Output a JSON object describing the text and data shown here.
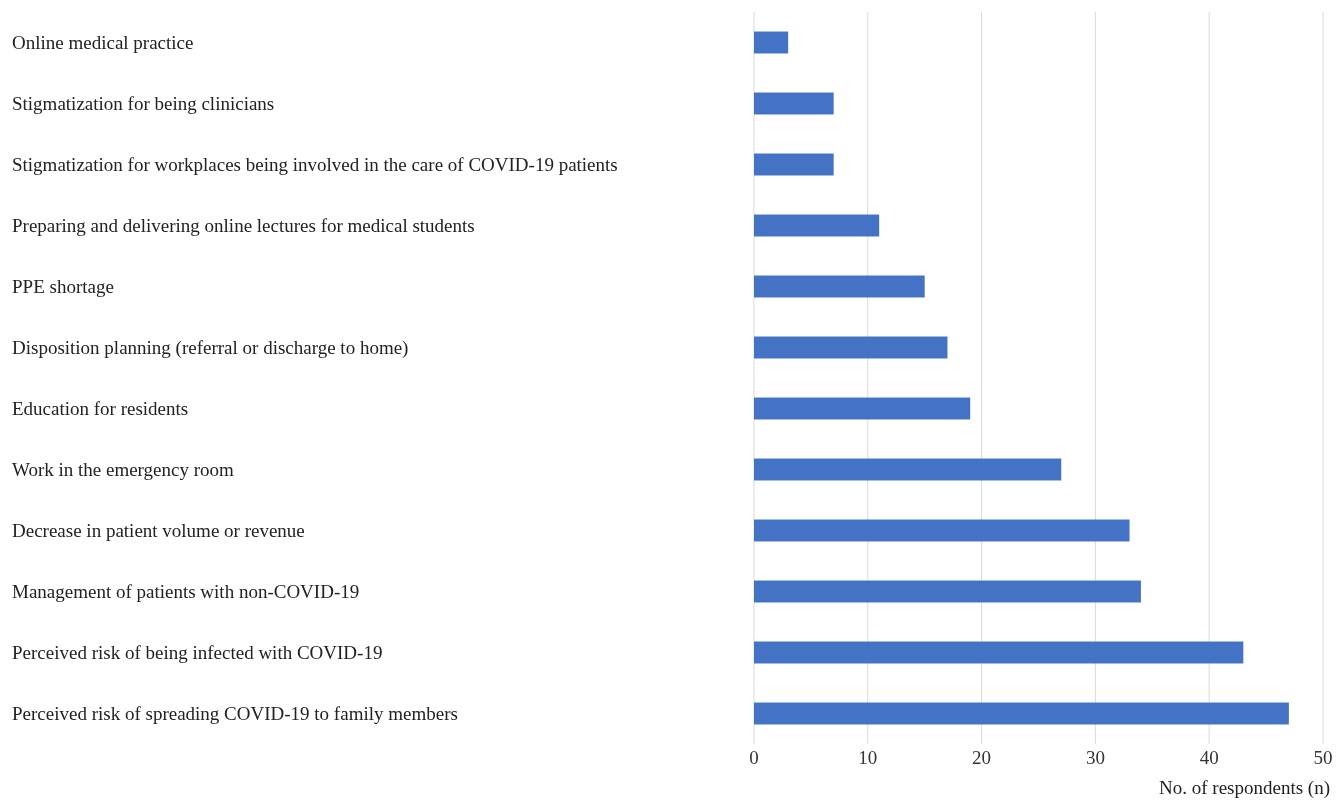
{
  "chart_data": {
    "type": "bar",
    "orientation": "horizontal",
    "xlabel": "No. of respondents (n)",
    "categories": [
      "Online medical practice",
      "Stigmatization for being clinicians",
      "Stigmatization for workplaces being involved in the care of COVID-19 patients",
      "Preparing and delivering online lectures for medical students",
      "PPE shortage",
      "Disposition planning (referral or discharge to home)",
      "Education for residents",
      "Work in the emergency room",
      "Decrease in patient volume or revenue",
      "Management of patients with non-COVID-19",
      "Perceived risk of being infected with COVID-19",
      "Perceived risk of spreading COVID-19 to family members"
    ],
    "values": [
      3,
      7,
      7,
      11,
      15,
      17,
      19,
      27,
      33,
      34,
      43,
      47
    ],
    "color": "#4472c4",
    "xlim": [
      0,
      50
    ],
    "xticks": [
      0,
      10,
      20,
      30,
      40,
      50
    ],
    "grid": "x"
  }
}
